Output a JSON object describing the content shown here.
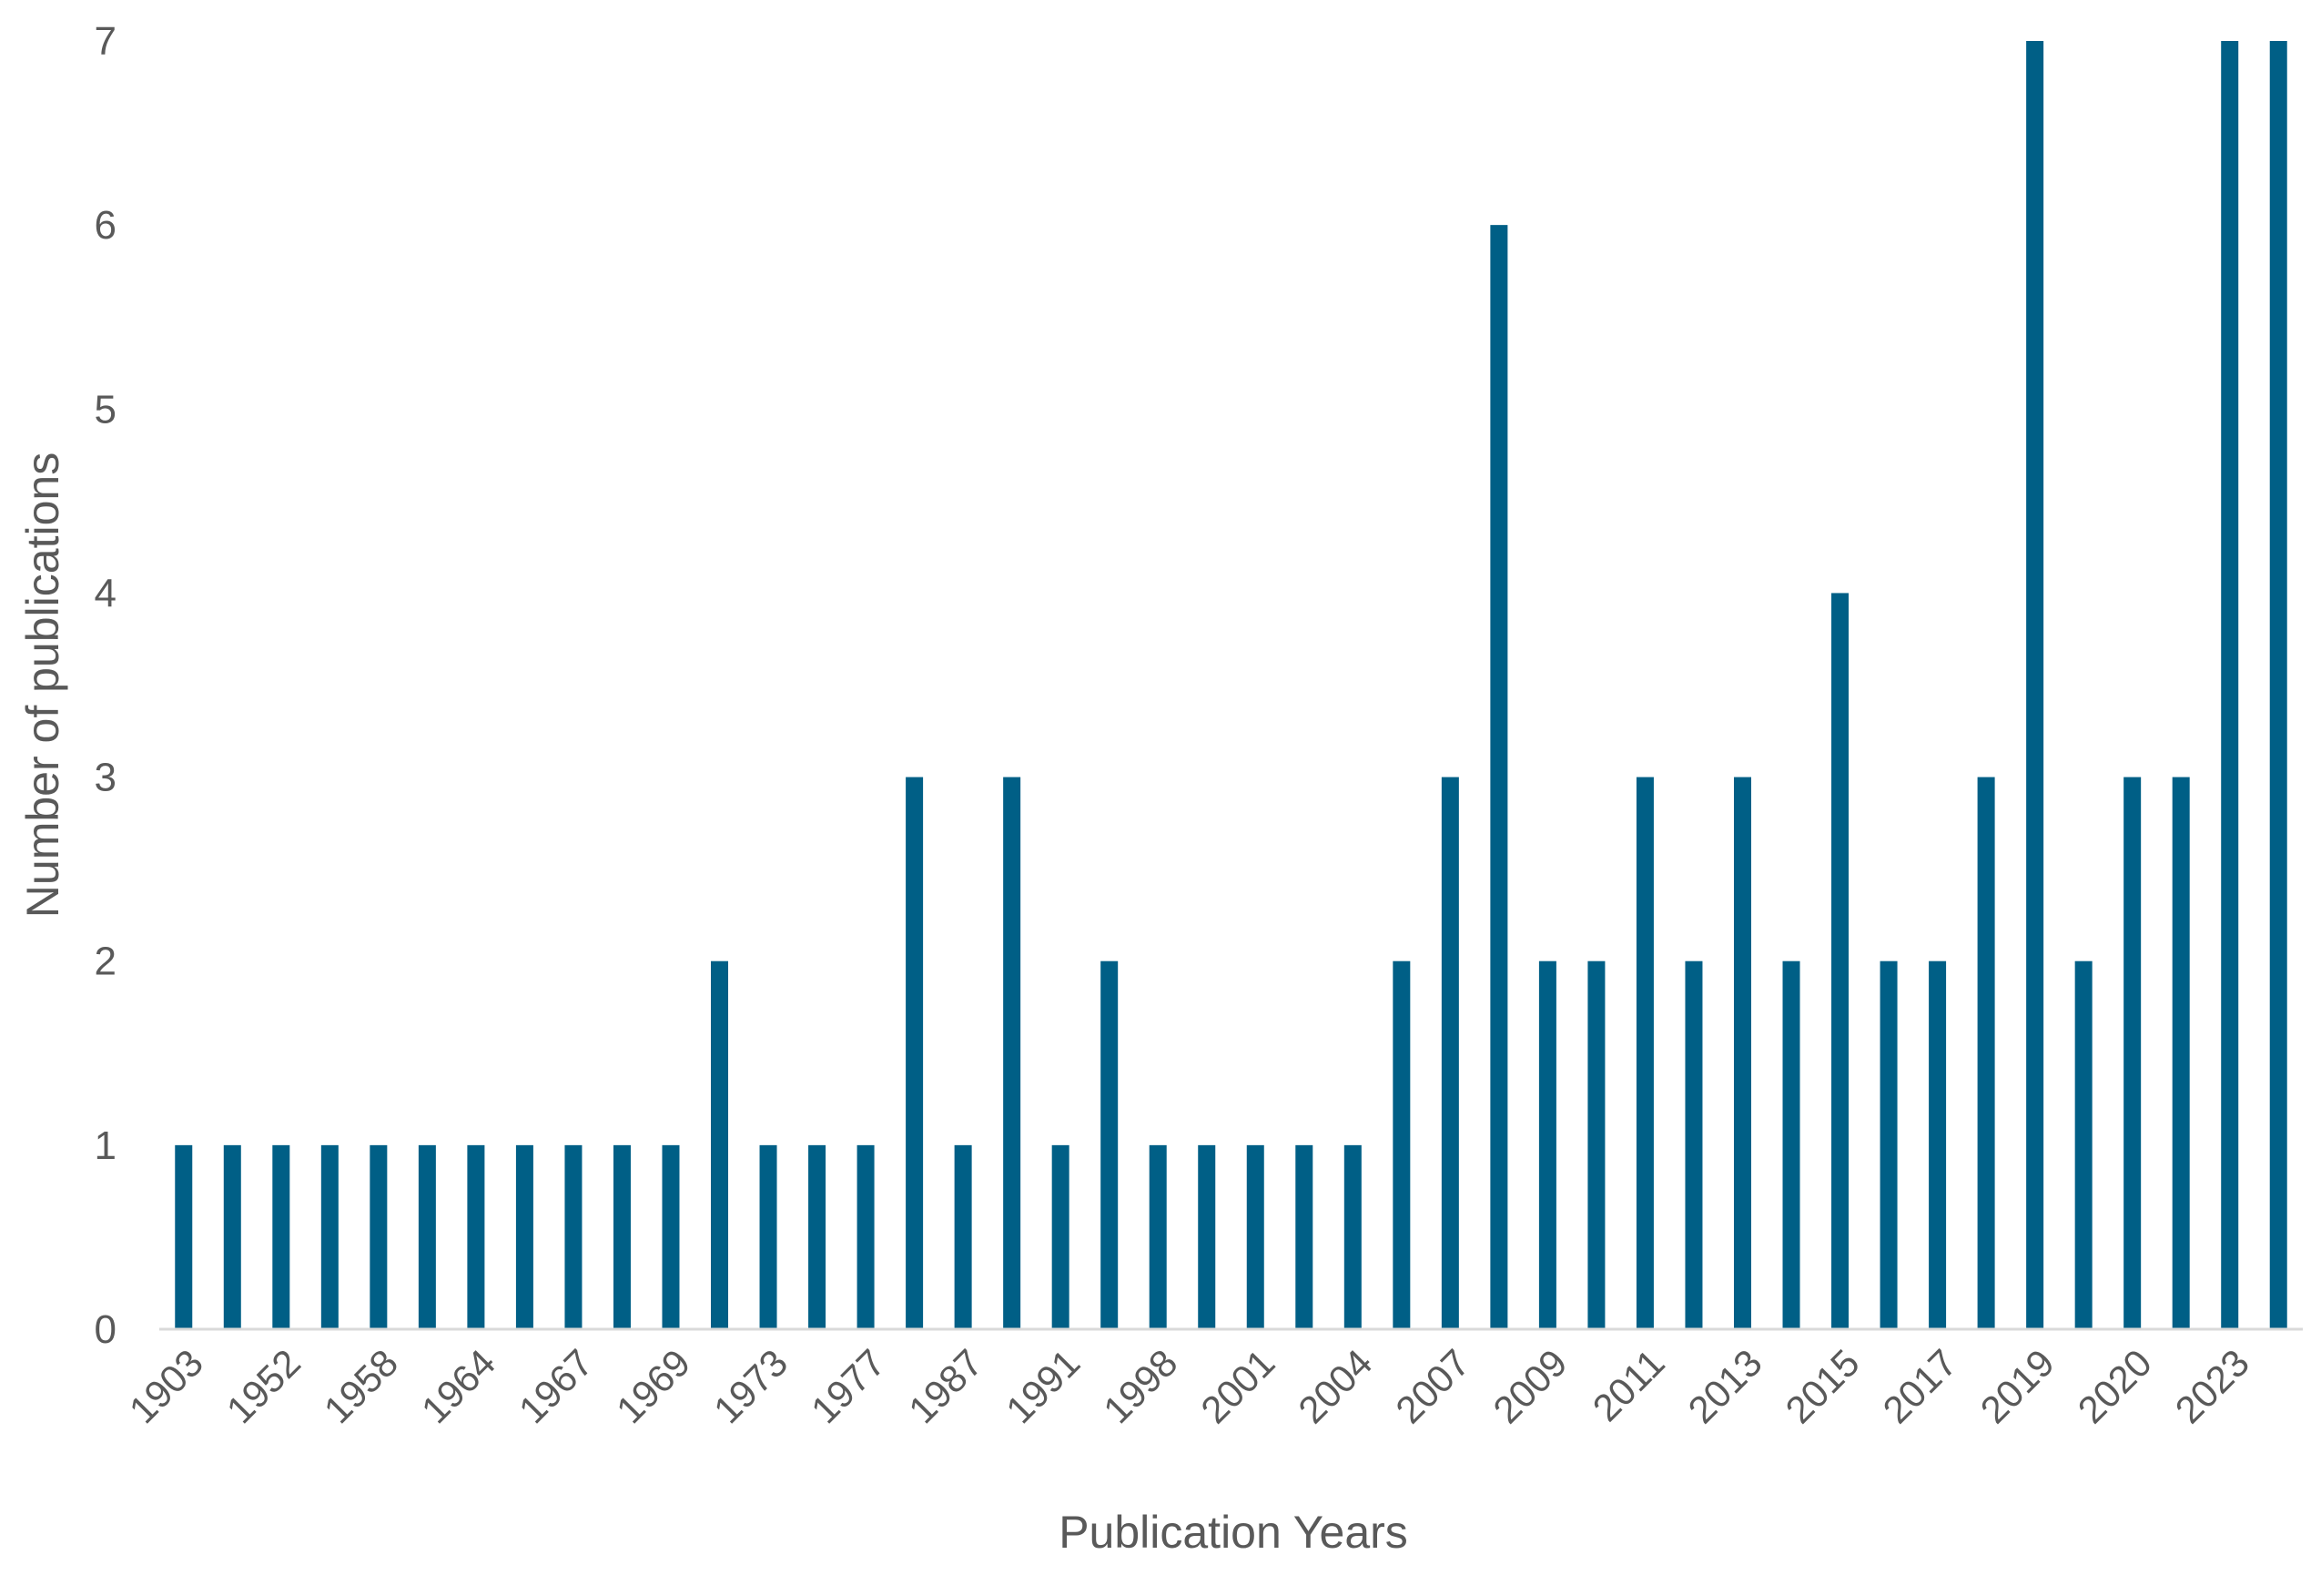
{
  "chart_data": {
    "type": "bar",
    "xlabel": "Publication Years",
    "ylabel": "Number of publications",
    "ylim": [
      0,
      7
    ],
    "yticks": [
      0,
      1,
      2,
      3,
      4,
      5,
      6,
      7
    ],
    "grid": false,
    "legend": "none",
    "bar_color": "#005F86",
    "axis_color": "#D9D9D9",
    "text_color": "#595959",
    "categories": [
      "1903",
      "",
      "1952",
      "",
      "1958",
      "",
      "1964",
      "",
      "1967",
      "",
      "1969",
      "",
      "1973",
      "",
      "1977",
      "",
      "1987",
      "",
      "1991",
      "",
      "1998",
      "",
      "2001",
      "",
      "2004",
      "",
      "2007",
      "",
      "2009",
      "",
      "2011",
      "",
      "2013",
      "",
      "2015",
      "",
      "2017",
      "",
      "2019",
      "",
      "2020",
      "",
      "2023",
      ""
    ],
    "values": [
      1,
      1,
      1,
      1,
      1,
      1,
      1,
      1,
      1,
      1,
      1,
      2,
      1,
      1,
      1,
      3,
      1,
      3,
      1,
      2,
      1,
      1,
      1,
      1,
      1,
      2,
      3,
      6,
      2,
      2,
      3,
      2,
      3,
      2,
      4,
      2,
      2,
      3,
      7,
      2,
      3,
      3,
      7,
      7
    ]
  }
}
